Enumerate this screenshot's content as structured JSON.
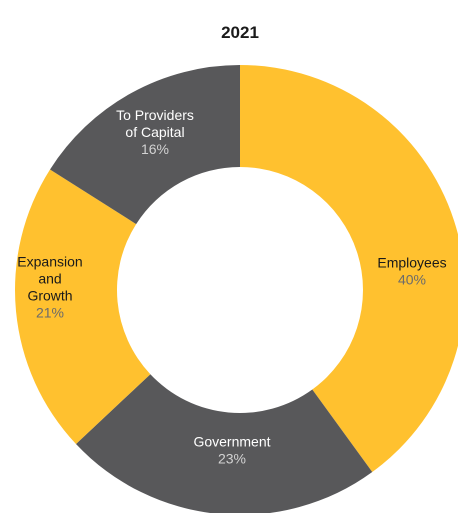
{
  "chart_data": {
    "type": "pie",
    "donut": true,
    "title": "2021",
    "slices": [
      {
        "label_lines": [
          "Employees"
        ],
        "value": 40,
        "value_label": "40%",
        "color": "#FFC12F",
        "text_color": "#1a1a1a",
        "pct_color": "#6b6b6b"
      },
      {
        "label_lines": [
          "Government"
        ],
        "value": 23,
        "value_label": "23%",
        "color": "#58585A",
        "text_color": "#ffffff",
        "pct_color": "#d2d2d2"
      },
      {
        "label_lines": [
          "Expansion",
          "and",
          "Growth"
        ],
        "value": 21,
        "value_label": "21%",
        "color": "#FFC12F",
        "text_color": "#1a1a1a",
        "pct_color": "#6b6b6b"
      },
      {
        "label_lines": [
          "To Providers",
          "of Capital"
        ],
        "value": 16,
        "value_label": "16%",
        "color": "#58585A",
        "text_color": "#ffffff",
        "pct_color": "#d2d2d2"
      }
    ]
  }
}
